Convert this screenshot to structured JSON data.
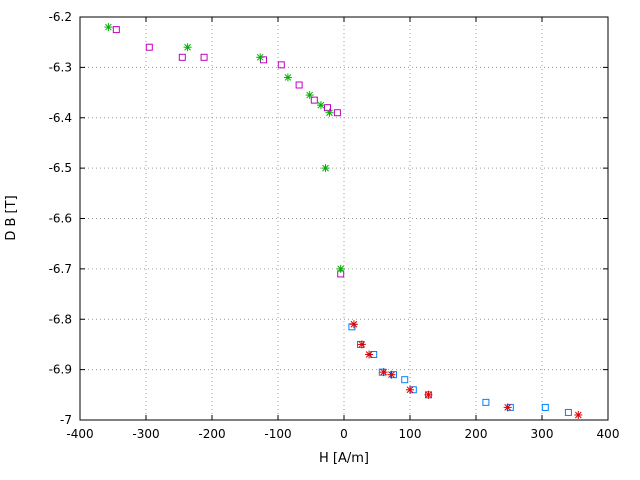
{
  "frame": {
    "background": "#ffffff",
    "border_color": "#000000",
    "grid_color": "#9c9c9c",
    "text_color": "#000000"
  },
  "chart_data": {
    "type": "scatter",
    "title": "",
    "xlabel": "H [A/m]",
    "ylabel": "D B [T]",
    "xlim": [
      -400,
      400
    ],
    "ylim": [
      -7,
      -6.2
    ],
    "x_ticks": [
      -400,
      -300,
      -200,
      -100,
      0,
      100,
      200,
      300,
      400
    ],
    "y_ticks": [
      -7,
      -6.9,
      -6.8,
      -6.7,
      -6.6,
      -6.5,
      -6.4,
      -6.3,
      -6.2
    ],
    "grid": "dotted",
    "legend": "none",
    "series": [
      {
        "name": "magenta-squares",
        "marker": "square",
        "color": "#c000c0",
        "points": [
          [
            -345,
            -6.225
          ],
          [
            -295,
            -6.26
          ],
          [
            -245,
            -6.28
          ],
          [
            -212,
            -6.28
          ],
          [
            -122,
            -6.285
          ],
          [
            -95,
            -6.295
          ],
          [
            -68,
            -6.335
          ],
          [
            -45,
            -6.365
          ],
          [
            -25,
            -6.38
          ],
          [
            -10,
            -6.39
          ],
          [
            -5,
            -6.71
          ]
        ]
      },
      {
        "name": "green-asterisks",
        "marker": "asterisk",
        "color": "#00b000",
        "points": [
          [
            -357,
            -6.22
          ],
          [
            -237,
            -6.26
          ],
          [
            -127,
            -6.28
          ],
          [
            -85,
            -6.32
          ],
          [
            -52,
            -6.355
          ],
          [
            -35,
            -6.375
          ],
          [
            -22,
            -6.39
          ],
          [
            -28,
            -6.5
          ],
          [
            -5,
            -6.7
          ]
        ]
      },
      {
        "name": "blue-squares",
        "marker": "square",
        "color": "#0080ff",
        "points": [
          [
            12,
            -6.815
          ],
          [
            25,
            -6.85
          ],
          [
            45,
            -6.87
          ],
          [
            58,
            -6.905
          ],
          [
            75,
            -6.91
          ],
          [
            92,
            -6.92
          ],
          [
            105,
            -6.94
          ],
          [
            128,
            -6.95
          ],
          [
            215,
            -6.965
          ],
          [
            252,
            -6.975
          ],
          [
            305,
            -6.975
          ],
          [
            340,
            -6.985
          ]
        ]
      },
      {
        "name": "red-asterisks",
        "marker": "asterisk",
        "color": "#e00000",
        "points": [
          [
            15,
            -6.81
          ],
          [
            27,
            -6.85
          ],
          [
            38,
            -6.87
          ],
          [
            60,
            -6.905
          ],
          [
            72,
            -6.91
          ],
          [
            100,
            -6.94
          ],
          [
            128,
            -6.95
          ],
          [
            248,
            -6.975
          ],
          [
            355,
            -6.99
          ]
        ]
      }
    ]
  }
}
